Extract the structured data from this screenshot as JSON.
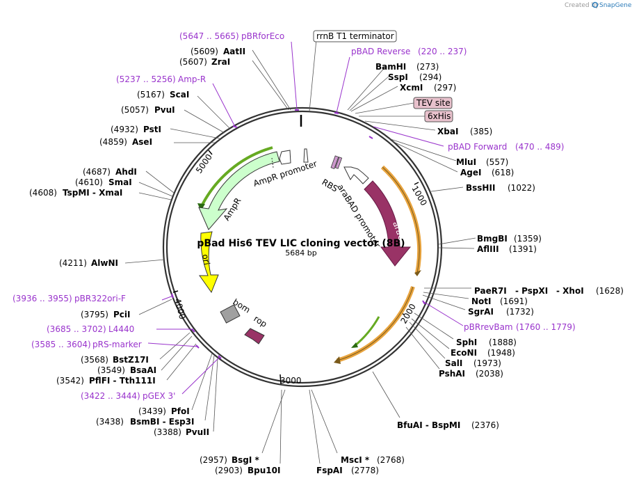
{
  "credit": {
    "prefix": "Created by",
    "brand": "SnapGene"
  },
  "title": "pBad His6 TEV LIC cloning vector (8B)",
  "length_label": "5684 bp",
  "length": 5684,
  "ticks": [
    "1000",
    "2000",
    "3000",
    "4000",
    "5000"
  ],
  "features": [
    {
      "name": "araC",
      "start": 1069,
      "end": 1947,
      "color": "#993366",
      "dir": -1
    },
    {
      "name": "AmpR",
      "start": 4480,
      "end": 5340,
      "color": "#ccffcc",
      "dir": -1
    },
    {
      "name": "ori",
      "start": 3955,
      "end": 4543,
      "color": "#ffff00",
      "dir": -1
    },
    {
      "name": "araBAD promoter",
      "start": 1001,
      "end": 1287,
      "color": "#ffffff",
      "dir": -1
    },
    {
      "name": "AmpR promoter",
      "start": 5341,
      "end": 5445,
      "color": "#ffffff",
      "dir": -1
    },
    {
      "name": "RBS",
      "start": 255,
      "end": 271,
      "color": "#cc99cc",
      "dir": 1
    },
    {
      "name": "bom",
      "start": 3465,
      "end": 3607,
      "color": "#a0a0a0",
      "dir": 0
    },
    {
      "name": "rop",
      "start": 3200,
      "end": 3390,
      "color": "#993366",
      "dir": -1
    }
  ],
  "features_labels": {
    "arac": "araC",
    "ampr": "AmpR",
    "ori": "ori",
    "arabad": "araBAD promoter",
    "ampr_promoter": "AmpR promoter",
    "rbs": "RBS",
    "bom": "bom",
    "rop": "rop"
  },
  "sites": {
    "zrai": {
      "name": "ZraI",
      "pos": "(5607)"
    },
    "aatii": {
      "name": "AatII",
      "pos": "(5609)"
    },
    "scai": {
      "name": "ScaI",
      "pos": "(5167)"
    },
    "pvui": {
      "name": "PvuI",
      "pos": "(5057)"
    },
    "psti": {
      "name": "PstI",
      "pos": "(4932)"
    },
    "asei": {
      "name": "AseI",
      "pos": "(4859)"
    },
    "ahdi": {
      "name": "AhdI",
      "pos": "(4687)"
    },
    "smai": {
      "name": "SmaI",
      "pos": "(4610)"
    },
    "tspmi": {
      "name": "TspMI - XmaI",
      "pos": "(4608)"
    },
    "alwni": {
      "name": "AlwNI",
      "pos": "(4211)"
    },
    "pcii": {
      "name": "PciI",
      "pos": "(3795)"
    },
    "bstz17i": {
      "name": "BstZ17I",
      "pos": "(3568)"
    },
    "bsaai": {
      "name": "BsaAI",
      "pos": "(3549)"
    },
    "pflfi": {
      "name": "PflFI - Tth111I",
      "pos": "(3542)"
    },
    "pfoi": {
      "name": "PfoI",
      "pos": "(3439)"
    },
    "bsmbi": {
      "name": "BsmBI - Esp3I",
      "pos": "(3438)"
    },
    "pvuii": {
      "name": "PvuII",
      "pos": "(3388)"
    },
    "bsgi": {
      "name": "BsgI *",
      "pos": "(2957)"
    },
    "bpu10i": {
      "name": "Bpu10I",
      "pos": "(2903)"
    },
    "msci": {
      "name": "MscI *",
      "pos": "(2768)"
    },
    "fspai": {
      "name": "FspAI",
      "pos": "(2778)"
    },
    "bfuai": {
      "name": "BfuAI - BspMI",
      "pos": "(2376)"
    },
    "pshai": {
      "name": "PshAI",
      "pos": "(2038)"
    },
    "sali": {
      "name": "SalI",
      "pos": "(1973)"
    },
    "econi": {
      "name": "EcoNI",
      "pos": "(1948)"
    },
    "sphi": {
      "name": "SphI",
      "pos": "(1888)"
    },
    "sgrai": {
      "name": "SgrAI",
      "pos": "(1732)"
    },
    "noti": {
      "name": "NotI",
      "pos": "(1691)"
    },
    "paer7i_a": "PaeR7I",
    "paer7i_b": "- PspXI",
    "paer7i_c": "- XhoI",
    "paer7i_pos": "(1628)",
    "afliii": {
      "name": "AflIII",
      "pos": "(1391)"
    },
    "bmgbi": {
      "name": "BmgBI",
      "pos": "(1359)"
    },
    "bsshii": {
      "name": "BssHII",
      "pos": "(1022)"
    },
    "agei": {
      "name": "AgeI",
      "pos": "(618)"
    },
    "mlui": {
      "name": "MluI",
      "pos": "(557)"
    },
    "xbai": {
      "name": "XbaI",
      "pos": "(385)"
    },
    "xcmi": {
      "name": "XcmI",
      "pos": "(297)"
    },
    "sspi": {
      "name": "SspI",
      "pos": "(294)"
    },
    "bamhi": {
      "name": "BamHI",
      "pos": "(273)"
    }
  },
  "primers": {
    "pbrforeco": {
      "name": "pBRforEco",
      "range": "(5647 .. 5665)"
    },
    "ampr_primer": {
      "name": "Amp-R",
      "range": "(5237 .. 5256)"
    },
    "pbr322ori": {
      "name": "pBR322ori-F",
      "range": "(3936 .. 3955)"
    },
    "l4440": {
      "name": "L4440",
      "range": "(3685 .. 3702)"
    },
    "prs_marker": {
      "name": "pRS-marker",
      "range": "(3585 .. 3604)"
    },
    "pgex3": {
      "name": "pGEX 3'",
      "range": "(3422 .. 3444)"
    },
    "pbrrevbam": {
      "name": "pBRrevBam",
      "range": "(1760 .. 1779)"
    },
    "pbad_forward": {
      "name": "pBAD Forward",
      "range": "(470 .. 489)"
    },
    "pbad_reverse": {
      "name": "pBAD Reverse",
      "range": "(220 .. 237)"
    }
  },
  "boxes": {
    "terminator": "rrnB T1 terminator",
    "tev": "TEV site",
    "his": "6xHis"
  },
  "colors": {
    "primer": "#9933cc",
    "araC": "#993366",
    "ampr": "#ccffcc",
    "ori": "#ffff00",
    "orf": "#e8a33d",
    "orf2": "#66aa22",
    "tag": "#e8c1cc"
  }
}
